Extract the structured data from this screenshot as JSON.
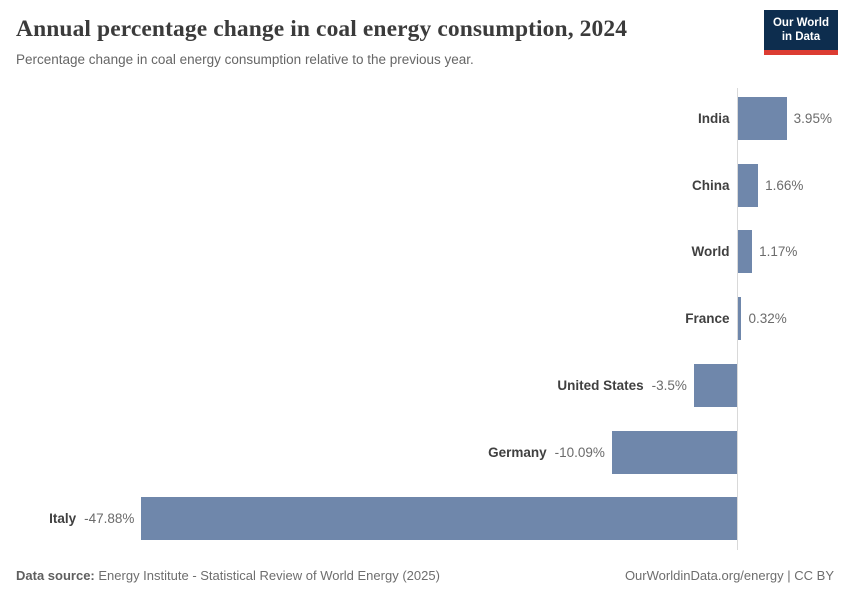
{
  "header": {
    "title": "Annual percentage change in coal energy consumption, 2024",
    "subtitle": "Percentage change in coal energy consumption relative to the previous year.",
    "logo_line1": "Our World",
    "logo_line2": "in Data"
  },
  "chart_data": {
    "type": "bar",
    "orientation": "horizontal",
    "title": "Annual percentage change in coal energy consumption, 2024",
    "subtitle": "Percentage change in coal energy consumption relative to the previous year.",
    "categories": [
      "India",
      "China",
      "World",
      "France",
      "United States",
      "Germany",
      "Italy"
    ],
    "values": [
      3.95,
      1.66,
      1.17,
      0.32,
      -3.5,
      -10.09,
      -47.88
    ],
    "value_labels": [
      "3.95%",
      "1.66%",
      "1.17%",
      "0.32%",
      "-3.5%",
      "-10.09%",
      "-47.88%"
    ],
    "unit": "%",
    "xlabel": "",
    "ylabel": "",
    "xlim": [
      -48,
      9
    ],
    "grid": false,
    "legend": false,
    "sorted": "descending"
  },
  "colors": {
    "bar": "#6f87ab",
    "axis_line": "#d9d9d9",
    "category_label": "#404040",
    "value_label": "#6b6b6b",
    "logo_bg": "#0d2d4e",
    "logo_accent": "#dc3c32"
  },
  "footer": {
    "source_label": "Data source:",
    "source_text": "Energy Institute - Statistical Review of World Energy (2025)",
    "credit": "OurWorldinData.org/energy | CC BY"
  }
}
